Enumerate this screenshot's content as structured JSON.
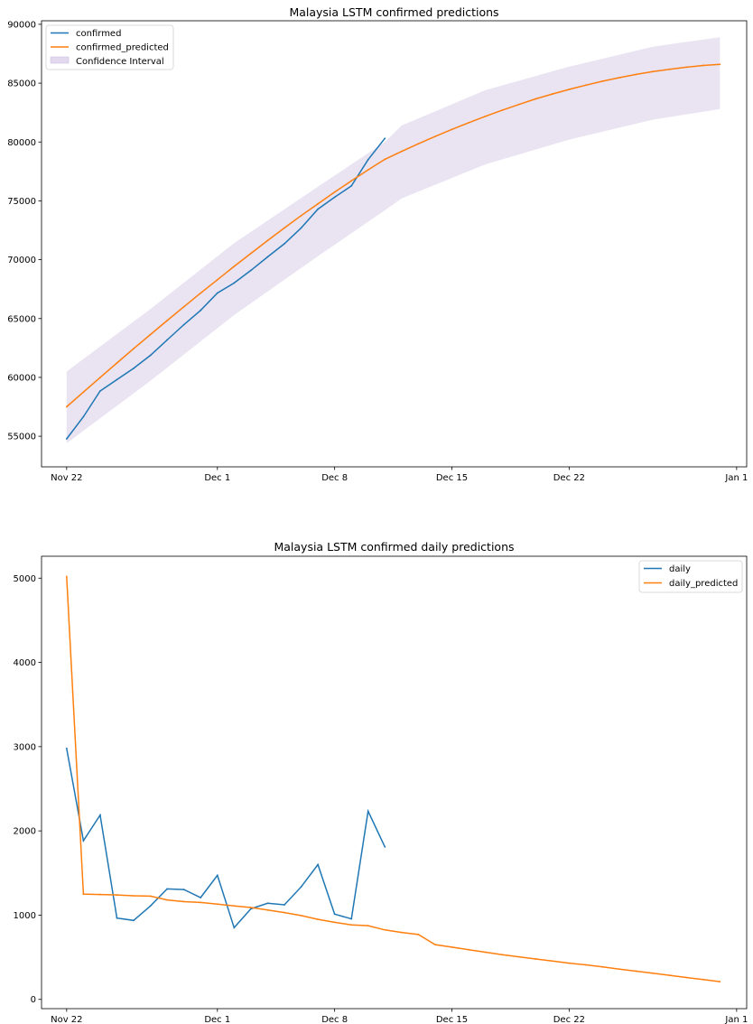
{
  "colors": {
    "confirmed": "#1f77b4",
    "predicted": "#ff7f0e",
    "band": "#e2d9ee",
    "axis": "#000000"
  },
  "chart_data": [
    {
      "type": "line",
      "title": "Malaysia LSTM confirmed predictions",
      "xlabel": "",
      "ylabel": "",
      "x_ticks": [
        {
          "day": 0,
          "label": "Nov 22"
        },
        {
          "day": 9,
          "label": "Dec 1"
        },
        {
          "day": 16,
          "label": "Dec 8"
        },
        {
          "day": 23,
          "label": "Dec 15"
        },
        {
          "day": 30,
          "label": "Dec 22"
        },
        {
          "day": 40,
          "label": "Jan 1"
        }
      ],
      "y_ticks": [
        55000,
        60000,
        65000,
        70000,
        75000,
        80000,
        85000,
        90000
      ],
      "xlim": [
        -1.5,
        40.6
      ],
      "ylim": [
        52400,
        90300
      ],
      "legend_position": "upper left",
      "legend": [
        "confirmed",
        "confirmed_predicted",
        "Confidence Interval"
      ],
      "series": [
        {
          "name": "confirmed",
          "x": [
            0,
            1,
            2,
            3,
            4,
            5,
            6,
            7,
            8,
            9,
            10,
            11,
            12,
            13,
            14,
            15,
            16,
            17,
            18,
            19
          ],
          "values": [
            54775,
            56659,
            58847,
            59812,
            60768,
            61875,
            63183,
            64484,
            65697,
            67169,
            68020,
            69095,
            70236,
            71359,
            72694,
            74294,
            75306,
            76265,
            78499,
            80309
          ]
        },
        {
          "name": "confirmed_predicted",
          "x": [
            0,
            1,
            2,
            3,
            4,
            5,
            6,
            7,
            8,
            9,
            10,
            11,
            12,
            13,
            14,
            15,
            16,
            17,
            18,
            19,
            20,
            21,
            22,
            23,
            24,
            25,
            26,
            27,
            28,
            29,
            30,
            31,
            32,
            33,
            34,
            35,
            36,
            37,
            38,
            39
          ],
          "values": [
            57500,
            58750,
            59990,
            61220,
            62440,
            63640,
            64830,
            66000,
            67160,
            68300,
            69430,
            70540,
            71630,
            72700,
            73740,
            74750,
            75740,
            76700,
            77630,
            78530,
            79200,
            79850,
            80470,
            81070,
            81640,
            82180,
            82700,
            83190,
            83660,
            84080,
            84470,
            84830,
            85170,
            85470,
            85740,
            85980,
            86180,
            86360,
            86500,
            86600
          ]
        }
      ],
      "confidence_interval": {
        "name": "Confidence Interval",
        "x": [
          0,
          5,
          10,
          15,
          19,
          20,
          25,
          30,
          35,
          39
        ],
        "lower": [
          54400,
          59700,
          65300,
          70300,
          74200,
          75200,
          78100,
          80200,
          81900,
          82800
        ],
        "upper": [
          60500,
          65800,
          71400,
          76200,
          80000,
          81400,
          84400,
          86400,
          88100,
          88900
        ]
      }
    },
    {
      "type": "line",
      "title": "Malaysia LSTM confirmed daily predictions",
      "xlabel": "",
      "ylabel": "",
      "x_ticks": [
        {
          "day": 0,
          "label": "Nov 22"
        },
        {
          "day": 9,
          "label": "Dec 1"
        },
        {
          "day": 16,
          "label": "Dec 8"
        },
        {
          "day": 23,
          "label": "Dec 15"
        },
        {
          "day": 30,
          "label": "Dec 22"
        },
        {
          "day": 40,
          "label": "Jan 1"
        }
      ],
      "y_ticks": [
        0,
        1000,
        2000,
        3000,
        4000,
        5000
      ],
      "xlim": [
        -1.5,
        40.6
      ],
      "ylim": [
        -110,
        5260
      ],
      "legend_position": "upper right",
      "legend": [
        "daily",
        "daily_predicted"
      ],
      "series": [
        {
          "name": "daily",
          "x": [
            0,
            1,
            2,
            3,
            4,
            5,
            6,
            7,
            8,
            9,
            10,
            11,
            12,
            13,
            14,
            15,
            16,
            17,
            18,
            19
          ],
          "values": [
            2980,
            1884,
            2188,
            965,
            937,
            1109,
            1311,
            1304,
            1208,
            1472,
            851,
            1075,
            1141,
            1123,
            1335,
            1600,
            1012,
            955,
            2234,
            1810
          ]
        },
        {
          "name": "daily_predicted",
          "x": [
            0,
            1,
            2,
            3,
            4,
            5,
            6,
            7,
            8,
            9,
            10,
            11,
            12,
            13,
            14,
            15,
            16,
            17,
            18,
            19,
            20,
            21,
            22,
            23,
            24,
            25,
            26,
            27,
            28,
            29,
            30,
            31,
            32,
            33,
            34,
            35,
            36,
            37,
            38,
            39
          ],
          "values": [
            5020,
            1250,
            1245,
            1240,
            1230,
            1225,
            1180,
            1160,
            1150,
            1130,
            1110,
            1090,
            1060,
            1030,
            995,
            950,
            915,
            885,
            875,
            825,
            795,
            770,
            650,
            620,
            590,
            560,
            530,
            505,
            480,
            455,
            430,
            410,
            385,
            360,
            335,
            310,
            285,
            260,
            235,
            210
          ]
        }
      ]
    }
  ]
}
